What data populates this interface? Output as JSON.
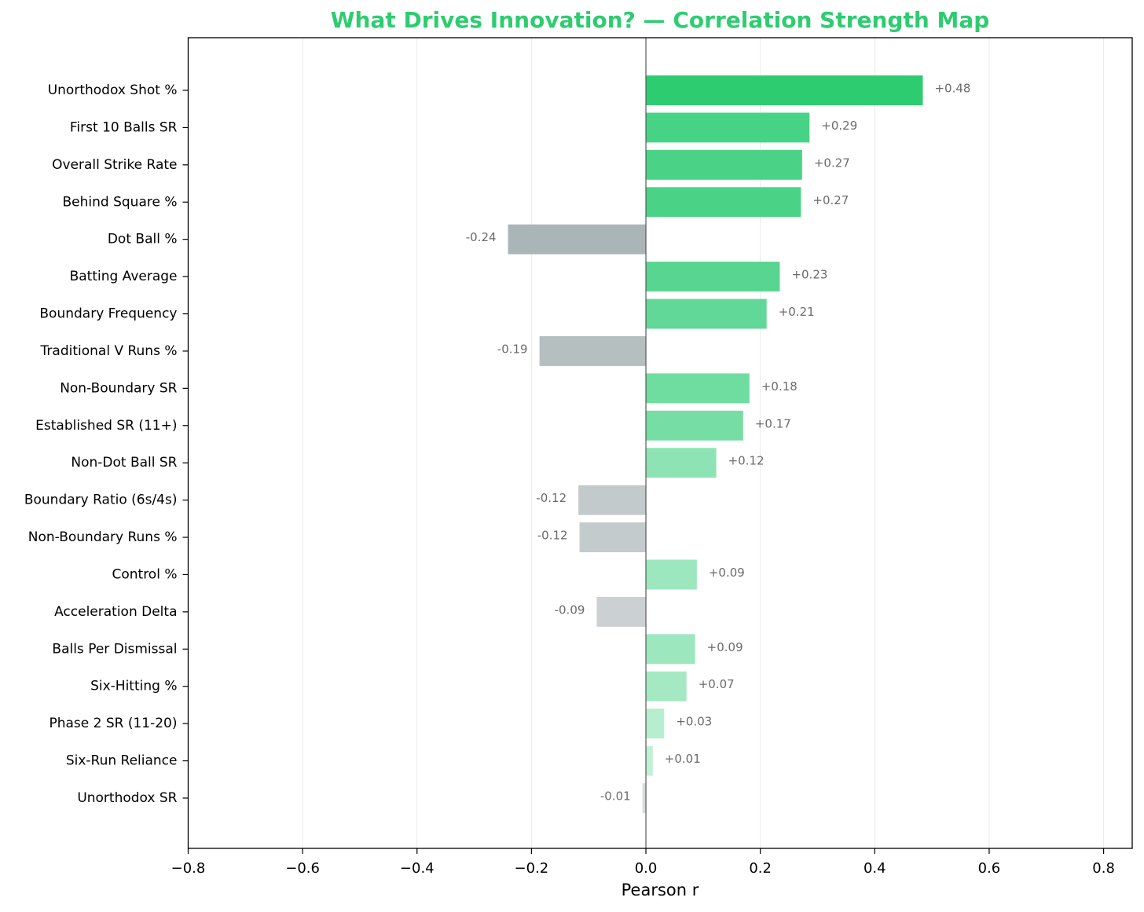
{
  "chart_data": {
    "type": "bar",
    "orientation": "horizontal",
    "title": "What Drives Innovation? — Correlation Strength Map",
    "xlabel": "Pearson r",
    "categories": [
      "Unorthodox Shot %",
      "First 10 Balls SR",
      "Overall Strike Rate",
      "Behind Square %",
      "Dot Ball %",
      "Batting Average",
      "Boundary Frequency",
      "Traditional V Runs %",
      "Non-Boundary SR",
      "Established SR (11+)",
      "Non-Dot Ball SR",
      "Boundary Ratio (6s/4s)",
      "Non-Boundary Runs %",
      "Control %",
      "Acceleration Delta",
      "Balls Per Dismissal",
      "Six-Hitting %",
      "Phase 2 SR (11-20)",
      "Six-Run Reliance",
      "Unorthodox SR"
    ],
    "values": [
      0.484,
      0.286,
      0.273,
      0.271,
      -0.241,
      0.234,
      0.211,
      -0.186,
      0.181,
      0.17,
      0.123,
      -0.118,
      -0.116,
      0.089,
      -0.086,
      0.086,
      0.071,
      0.032,
      0.012,
      -0.006
    ],
    "value_labels": [
      "+0.48",
      "+0.29",
      "+0.27",
      "+0.27",
      "-0.24",
      "+0.23",
      "+0.21",
      "-0.19",
      "+0.18",
      "+0.17",
      "+0.12",
      "-0.12",
      "-0.12",
      "+0.09",
      "-0.09",
      "+0.09",
      "+0.07",
      "+0.03",
      "+0.01",
      "-0.01"
    ],
    "colors": [
      "#2ecc71",
      "#47d385",
      "#4ad386",
      "#4ad387",
      "#aab5b8",
      "#58d691",
      "#62d898",
      "#b5bfc0",
      "#6fdca0",
      "#76dda4",
      "#8de3b3",
      "#c3cacc",
      "#c4cbcd",
      "#9ce7bd",
      "#cbd1d2",
      "#9de7be",
      "#a5e9c3",
      "#b7eecf",
      "#c0f0d5",
      "#d7dcdd"
    ],
    "xlim": [
      -0.8,
      0.85
    ],
    "xticks": [
      {
        "value": -0.8,
        "label": "−0.8"
      },
      {
        "value": -0.6,
        "label": "−0.6"
      },
      {
        "value": -0.4,
        "label": "−0.4"
      },
      {
        "value": -0.2,
        "label": "−0.2"
      },
      {
        "value": 0,
        "label": "0.0"
      },
      0.2,
      0.4,
      0.6,
      0.8
    ],
    "grid": true
  }
}
